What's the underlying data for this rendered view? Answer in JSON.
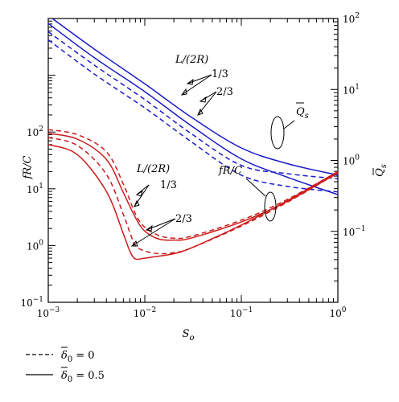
{
  "chart_data": {
    "type": "line",
    "x_axis": {
      "label": "S",
      "label_sub": "o",
      "scale": "log",
      "range": [
        0.001,
        1
      ],
      "ticks": [
        {
          "value": 0.001,
          "base": "10",
          "exp": "−3"
        },
        {
          "value": 0.01,
          "base": "10",
          "exp": "−2"
        },
        {
          "value": 0.1,
          "base": "10",
          "exp": "−1"
        },
        {
          "value": 1,
          "base": "10",
          "exp": "0"
        }
      ]
    },
    "y_left": {
      "label": "fR/C",
      "scale": "log",
      "range": [
        0.1,
        10000
      ],
      "ticks": [
        {
          "value": 0.1,
          "base": "10",
          "exp": "−1"
        },
        {
          "value": 1,
          "base": "10",
          "exp": "0"
        },
        {
          "value": 10,
          "base": "10",
          "exp": "1"
        },
        {
          "value": 100,
          "base": "10",
          "exp": "2"
        }
      ]
    },
    "y_right": {
      "label": "Q",
      "label_sub": "s",
      "scale": "log",
      "range": [
        0.01,
        100
      ],
      "ticks": [
        {
          "value": 0.1,
          "base": "10",
          "exp": "−1"
        },
        {
          "value": 1,
          "base": "10",
          "exp": "0"
        },
        {
          "value": 10,
          "base": "10",
          "exp": "1"
        },
        {
          "value": 100,
          "base": "10",
          "exp": "2"
        }
      ]
    },
    "series": [
      {
        "group": "Qs",
        "color": "#1a1acc",
        "dash": "solid",
        "axis": "right",
        "x": [
          0.001,
          0.003,
          0.01,
          0.03,
          0.1,
          0.3,
          1
        ],
        "y": [
          110,
          37,
          12,
          4.1,
          1.5,
          0.9,
          0.62
        ]
      },
      {
        "group": "Qs",
        "color": "#1a1acc",
        "dash": "solid",
        "axis": "right",
        "x": [
          0.001,
          0.003,
          0.01,
          0.03,
          0.1,
          0.3,
          1
        ],
        "y": [
          85,
          28,
          9.3,
          3.1,
          1.05,
          0.58,
          0.33
        ]
      },
      {
        "group": "Qs",
        "color": "#1a1acc",
        "dash": "dashed",
        "axis": "right",
        "x": [
          0.001,
          0.003,
          0.01,
          0.03,
          0.1,
          0.3,
          1
        ],
        "y": [
          65,
          22,
          7.2,
          2.4,
          0.85,
          0.65,
          0.55
        ]
      },
      {
        "group": "Qs",
        "color": "#1a1acc",
        "dash": "dashed",
        "axis": "right",
        "x": [
          0.001,
          0.003,
          0.01,
          0.03,
          0.1,
          0.3,
          1
        ],
        "y": [
          50,
          16.5,
          5.5,
          1.85,
          0.62,
          0.43,
          0.36
        ]
      },
      {
        "group": "fRC",
        "color": "#cc1a1a",
        "dash": "dashed",
        "axis": "left",
        "x": [
          0.001,
          0.002,
          0.004,
          0.006,
          0.008,
          0.01,
          0.014,
          0.02,
          0.03,
          0.1,
          0.3,
          1
        ],
        "y": [
          110,
          90,
          45,
          12,
          3.6,
          2.1,
          1.5,
          1.35,
          1.45,
          2.8,
          6.5,
          20
        ]
      },
      {
        "group": "fRC",
        "color": "#cc1a1a",
        "dash": "solid",
        "axis": "left",
        "x": [
          0.001,
          0.002,
          0.004,
          0.006,
          0.008,
          0.01,
          0.014,
          0.02,
          0.03,
          0.1,
          0.3,
          1
        ],
        "y": [
          95,
          75,
          33,
          8.5,
          3.1,
          1.8,
          1.3,
          1.25,
          1.35,
          2.6,
          6.0,
          19
        ]
      },
      {
        "group": "fRC",
        "color": "#cc1a1a",
        "dash": "dashed",
        "axis": "left",
        "x": [
          0.001,
          0.002,
          0.004,
          0.006,
          0.007,
          0.008,
          0.01,
          0.014,
          0.02,
          0.03,
          0.1,
          0.3,
          1
        ],
        "y": [
          80,
          58,
          18,
          3.5,
          1.7,
          1.0,
          0.8,
          0.72,
          0.75,
          0.9,
          2.2,
          5.8,
          19
        ]
      },
      {
        "group": "fRC",
        "color": "#cc1a1a",
        "dash": "solid",
        "axis": "left",
        "x": [
          0.001,
          0.002,
          0.004,
          0.006,
          0.007,
          0.008,
          0.01,
          0.014,
          0.02,
          0.03,
          0.1,
          0.3,
          1
        ],
        "y": [
          60,
          40,
          9,
          1.6,
          0.8,
          0.58,
          0.6,
          0.65,
          0.72,
          0.9,
          2.3,
          6.2,
          20
        ]
      }
    ],
    "annotations": {
      "blue_group": {
        "title": "L/(2R)",
        "l1": "1/3",
        "l2": "2/3",
        "tag": "Q",
        "tag_sub": "s"
      },
      "red_group": {
        "title": "L/(2R)",
        "l1": "1/3",
        "l2": "2/3",
        "tag": "fR/C"
      }
    },
    "legend": [
      {
        "dash": "dashed",
        "symbol": "δ",
        "sub": "0",
        "value": "= 0"
      },
      {
        "dash": "solid",
        "symbol": "δ",
        "sub": "0",
        "value": "= 0.5"
      }
    ],
    "grid": false
  }
}
